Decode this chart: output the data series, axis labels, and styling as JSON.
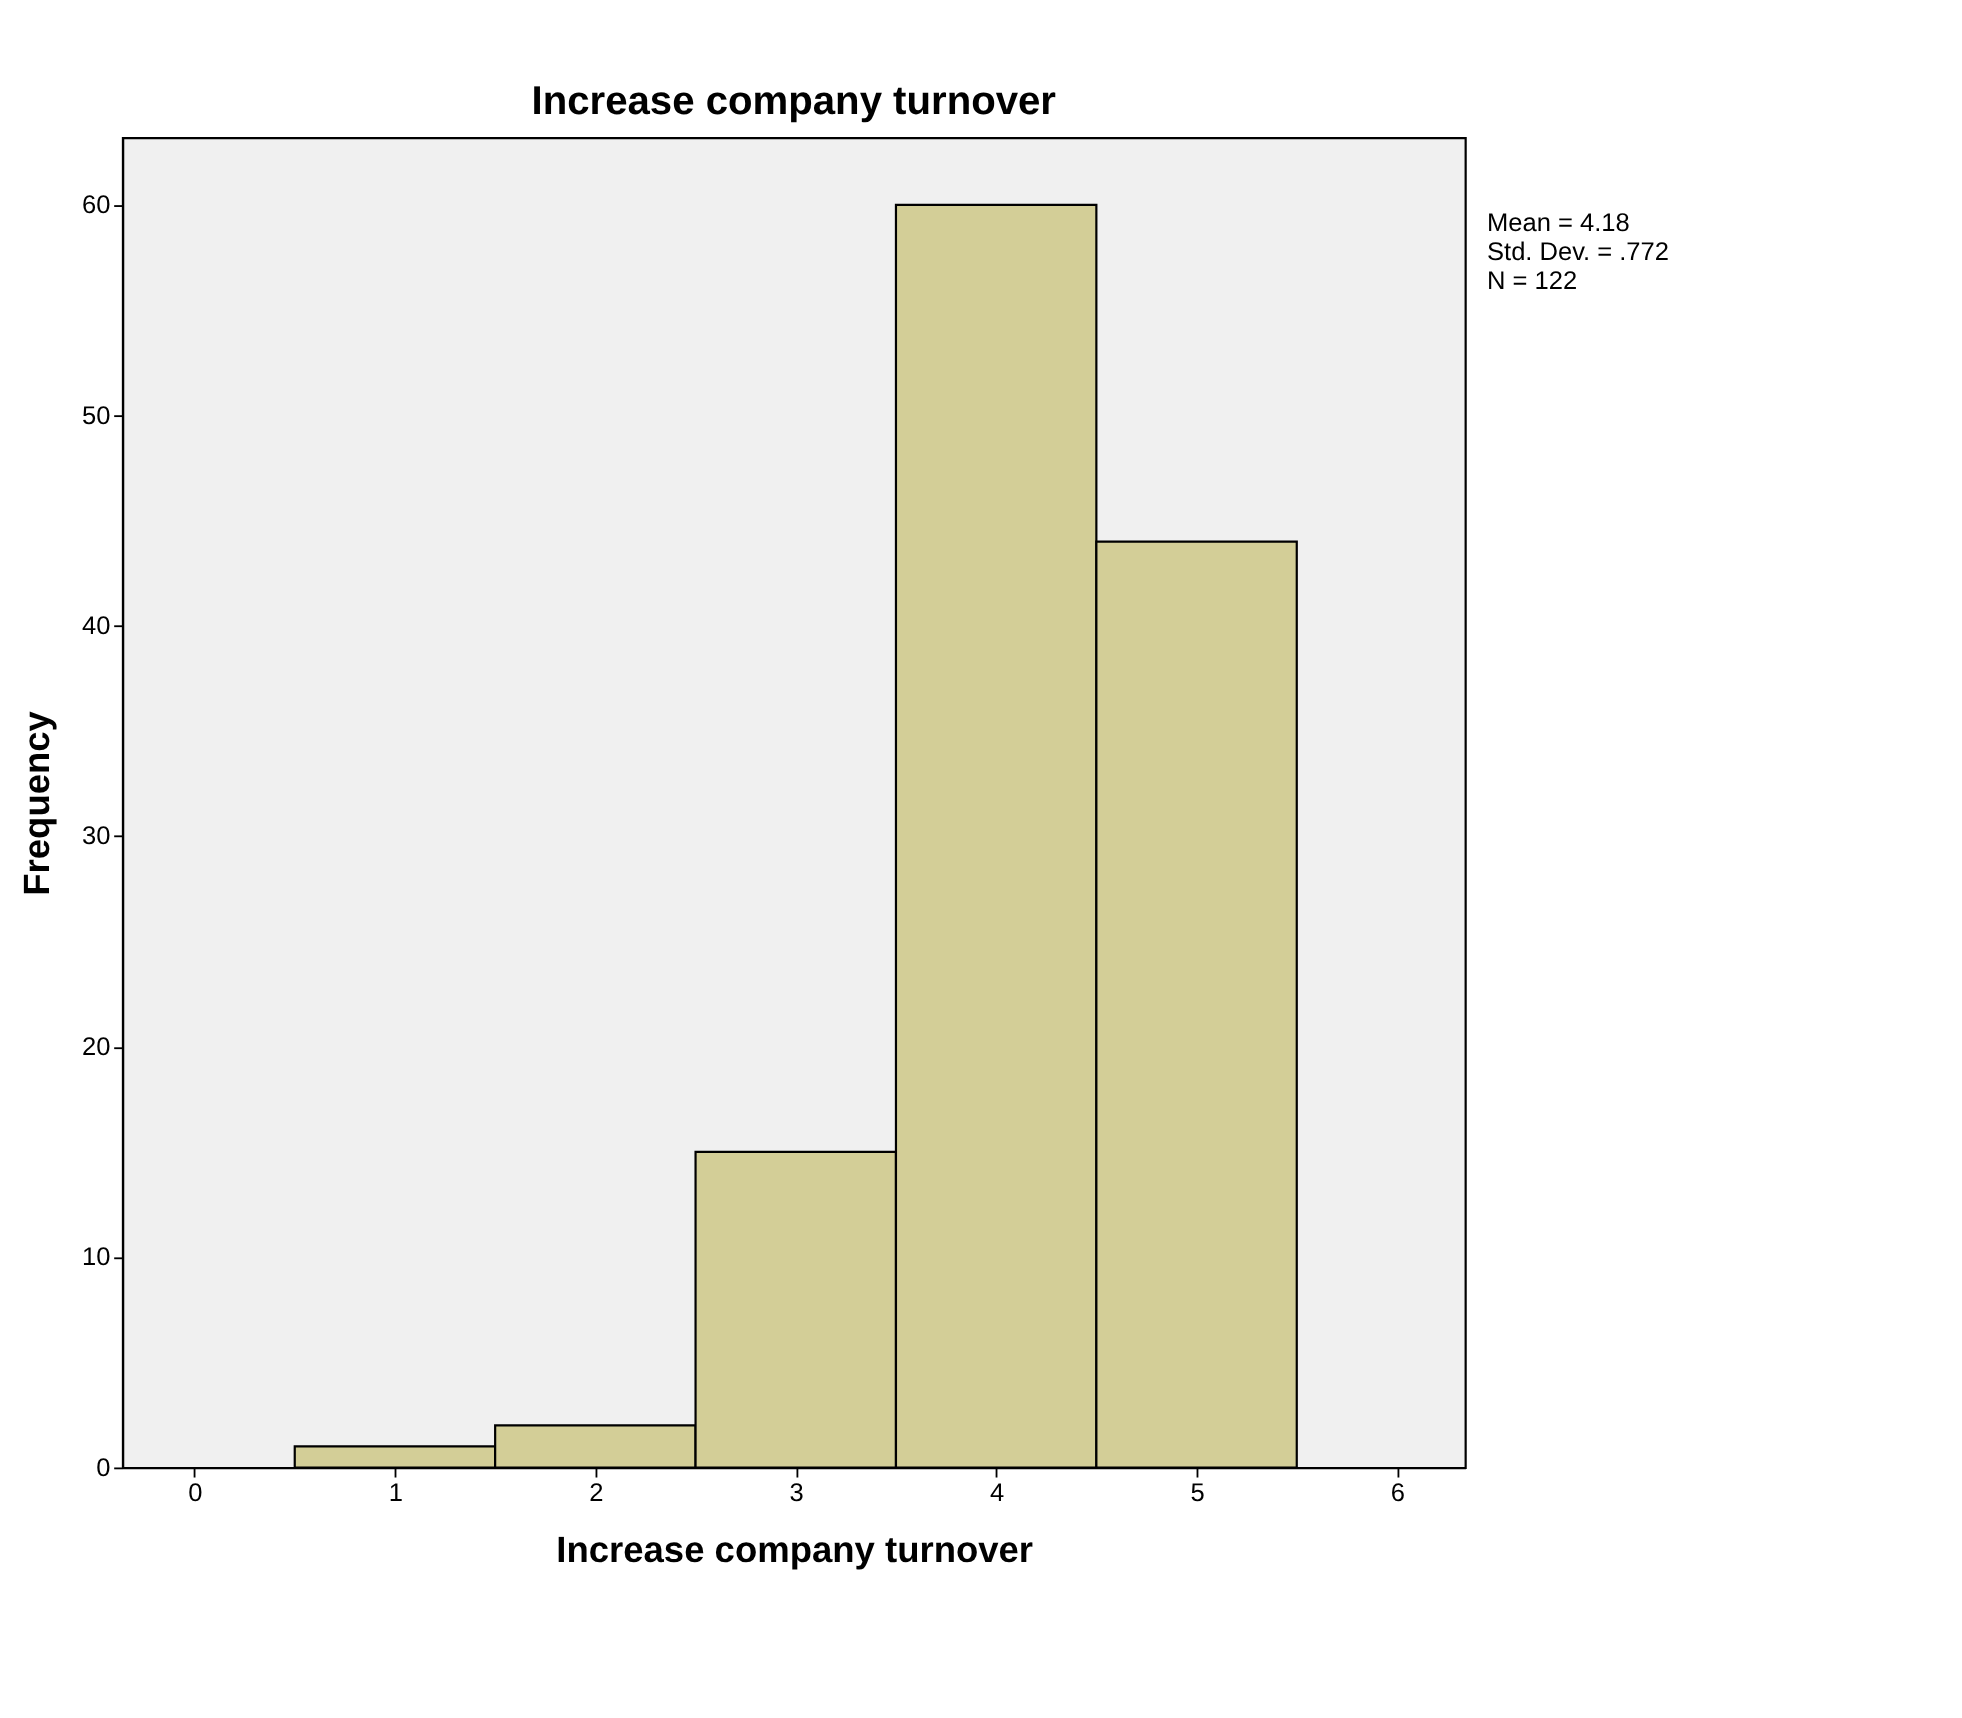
{
  "chart_data": {
    "type": "histogram",
    "title": "Increase company turnover",
    "xlabel": "Increase company turnover",
    "ylabel": "Frequency",
    "bins": [
      0.5,
      1.5,
      2.5,
      3.5,
      4.5,
      5.5
    ],
    "values": [
      1,
      2,
      15,
      60,
      44
    ],
    "color": "#d3ce97",
    "xlim": [
      -0.36,
      6.34
    ],
    "xticks": [
      0,
      1,
      2,
      3,
      4,
      5,
      6
    ],
    "ylim": [
      0,
      63.2
    ],
    "yticks": [
      0,
      10,
      20,
      30,
      40,
      50,
      60
    ],
    "grid": false,
    "annotations": [
      "Mean = 4.18",
      "Std. Dev. = .772",
      "N = 122"
    ]
  }
}
